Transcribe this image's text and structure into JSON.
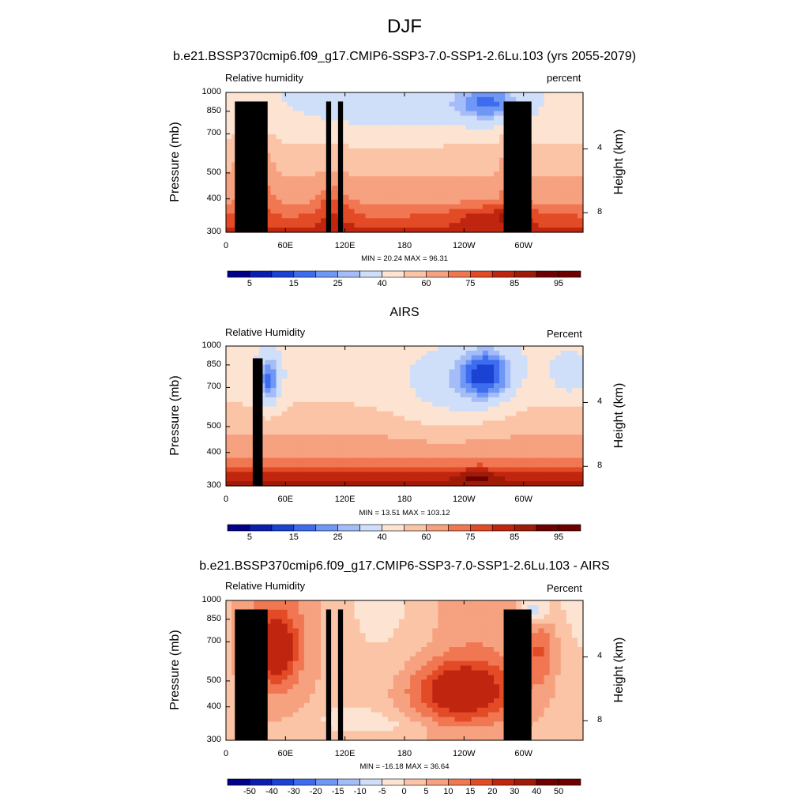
{
  "main_title": "DJF",
  "subtitle": "b.e21.BSSP370cmip6.f09_g17.CMIP6-SSP3-7.0-SSP1-2.6Lu.103 (yrs 2055-2079)",
  "colors": {
    "rh_palette": [
      "#00008a",
      "#0a1fb0",
      "#1a43d4",
      "#3d6cef",
      "#6f97f5",
      "#a4bcf7",
      "#cfdef9",
      "#fde4d2",
      "#fbc4a6",
      "#f6a17f",
      "#f07752",
      "#e34a26",
      "#c0260f",
      "#a01a08",
      "#6e0000"
    ],
    "diff_palette": [
      "#00008a",
      "#0a1fb0",
      "#1a43d4",
      "#3d6cef",
      "#6f97f5",
      "#a4bcf7",
      "#cfdef9",
      "#fde4d2",
      "#fbc4a6",
      "#f6a17f",
      "#f07752",
      "#e34a26",
      "#c0260f",
      "#a01a08",
      "#6e0000"
    ],
    "topography": "#000000"
  },
  "chart_data": [
    {
      "type": "heatmap",
      "title": "",
      "left_label": "Relative humidity",
      "right_label": "percent",
      "ylabel": "Pressure (mb)",
      "right_axis_label": "Height (km)",
      "y_ticks": [
        "300",
        "400",
        "500",
        "700",
        "850",
        "1000"
      ],
      "height_ticks": [
        "8",
        "4"
      ],
      "x_ticks": [
        "0",
        "60E",
        "120E",
        "180",
        "120W",
        "60W"
      ],
      "stats": "MIN =  20.24  MAX =  96.31",
      "colorbar_ticks": [
        "5",
        "15",
        "25",
        "40",
        "60",
        "75",
        "85",
        "95"
      ],
      "longitude_range": [
        0,
        360
      ],
      "pressure_range": [
        300,
        1000
      ],
      "min": 20.24,
      "max": 96.31
    },
    {
      "type": "heatmap",
      "title": "AIRS",
      "left_label": "Relative Humidity",
      "right_label": "Percent",
      "ylabel": "Pressure (mb)",
      "right_axis_label": "Height (km)",
      "y_ticks": [
        "300",
        "400",
        "500",
        "700",
        "850",
        "1000"
      ],
      "height_ticks": [
        "8",
        "4"
      ],
      "x_ticks": [
        "0",
        "60E",
        "120E",
        "180",
        "120W",
        "60W"
      ],
      "stats": "MIN =  13.51  MAX = 103.12",
      "colorbar_ticks": [
        "5",
        "15",
        "25",
        "40",
        "60",
        "75",
        "85",
        "95"
      ],
      "longitude_range": [
        0,
        360
      ],
      "pressure_range": [
        300,
        1000
      ],
      "min": 13.51,
      "max": 103.12
    },
    {
      "type": "heatmap",
      "title": "b.e21.BSSP370cmip6.f09_g17.CMIP6-SSP3-7.0-SSP1-2.6Lu.103 - AIRS",
      "left_label": "Relative Humidity",
      "right_label": "Percent",
      "ylabel": "Pressure (mb)",
      "right_axis_label": "Height (km)",
      "y_ticks": [
        "300",
        "400",
        "500",
        "700",
        "850",
        "1000"
      ],
      "height_ticks": [
        "8",
        "4"
      ],
      "x_ticks": [
        "0",
        "60E",
        "120E",
        "180",
        "120W",
        "60W"
      ],
      "stats": "MIN = -16.18  MAX =  36.64",
      "colorbar_ticks": [
        "-50",
        "-40",
        "-30",
        "-20",
        "-15",
        "-10",
        "-5",
        "0",
        "5",
        "10",
        "15",
        "20",
        "30",
        "40",
        "50"
      ],
      "longitude_range": [
        0,
        360
      ],
      "pressure_range": [
        300,
        1000
      ],
      "min": -16.18,
      "max": 36.64
    }
  ]
}
